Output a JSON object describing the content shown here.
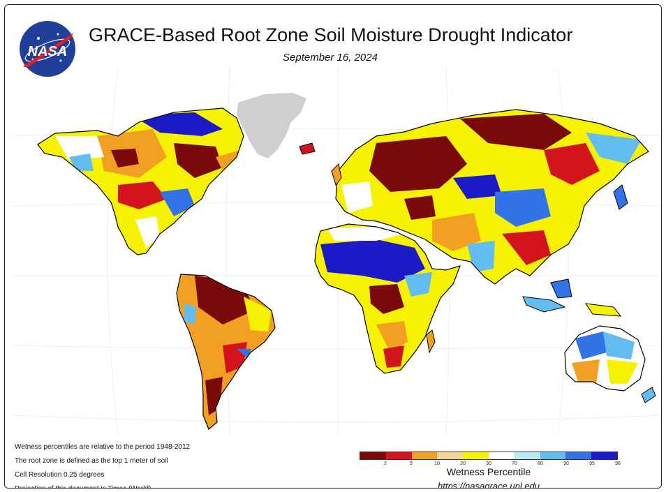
{
  "header": {
    "logo_text": "NASA",
    "title": "GRACE-Based Root Zone Soil Moisture Drought Indicator",
    "date": "September 16, 2024"
  },
  "notes": [
    "Wetness percentiles are relative to the period 1948-2012",
    "The root zone is defined as the top 1 meter of soil",
    "Cell Resolution 0.25 degrees",
    "Projection of this document is Times (World)"
  ],
  "legend": {
    "title": "Wetness Percentile",
    "url": "https://nasagrace.unl.edu",
    "ticks": [
      "2",
      "5",
      "10",
      "20",
      "30",
      "70",
      "80",
      "90",
      "95",
      "98"
    ],
    "colors": [
      "#7a0a0a",
      "#d4141c",
      "#f2a024",
      "#f5d49a",
      "#f7f200",
      "#ffffff",
      "#b8ecf2",
      "#64bdf0",
      "#3274e8",
      "#1a1ac8"
    ]
  },
  "map": {
    "palette": {
      "dry_extreme": "#7a0a0a",
      "dry_severe": "#d4141c",
      "dry_moderate": "#f2a024",
      "dry_light": "#f5d49a",
      "abnormal": "#f7f200",
      "normal": "#ffffff",
      "wet_light": "#b8ecf2",
      "wet_moderate": "#64bdf0",
      "wet_severe": "#3274e8",
      "wet_extreme": "#1a1ac8",
      "no_data": "#cfcfcf"
    }
  }
}
